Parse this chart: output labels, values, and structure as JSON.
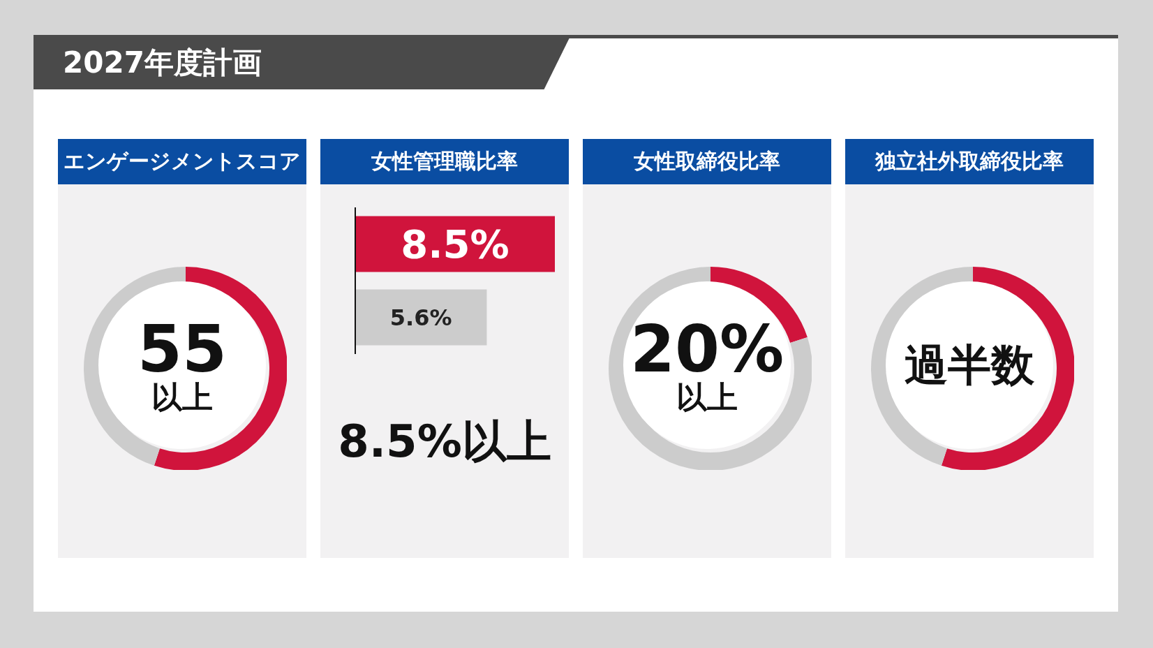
{
  "chart_data": [
    {
      "type": "other",
      "title": "2027年度計画"
    },
    {
      "type": "donut",
      "title": "エンゲージメントスコア",
      "categories": [
        null,
        null
      ],
      "values": [
        55,
        45
      ],
      "colors": [
        "#d0143c",
        "#cccccc"
      ],
      "annotations": [
        "55",
        "以上"
      ]
    },
    {
      "type": "bar",
      "orientation": "horizontal",
      "title": "女性管理職比率",
      "categories": [
        null,
        null
      ],
      "values": [
        8.5,
        5.6
      ],
      "colors": [
        "#d0143c",
        "#cccccc"
      ],
      "value_labels": [
        "8.5%",
        "5.6%"
      ],
      "annotations": [
        "8.5%以上"
      ]
    },
    {
      "type": "donut",
      "title": "女性取締役比率",
      "categories": [
        null,
        null
      ],
      "values": [
        20,
        80
      ],
      "colors": [
        "#d0143c",
        "#cccccc"
      ],
      "annotations": [
        "20%",
        "以上"
      ]
    },
    {
      "type": "donut",
      "title": "独立社外取締役比率",
      "categories": [
        null,
        null
      ],
      "values": [
        55,
        45
      ],
      "colors": [
        "#d0143c",
        "#cccccc"
      ],
      "annotations": [
        "過半数"
      ]
    }
  ]
}
